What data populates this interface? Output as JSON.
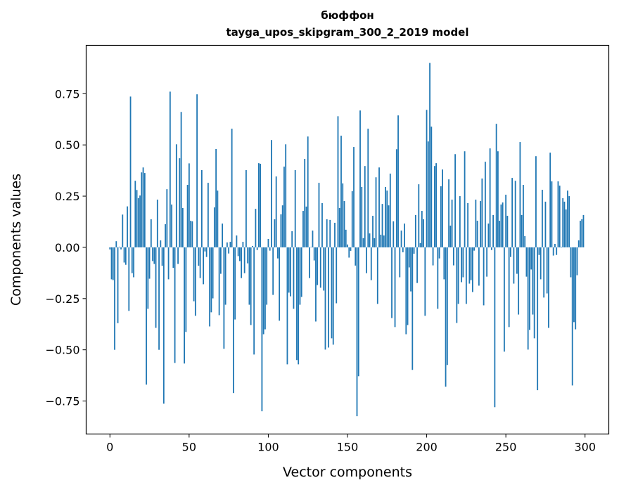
{
  "chart_data": {
    "type": "bar",
    "title": "бюффон",
    "subtitle": "tayga_upos_skipgram_300_2_2019 model",
    "xlabel": "Vector components",
    "ylabel": "Components values",
    "xlim": [
      -15,
      315
    ],
    "ylim": [
      -0.911,
      0.986
    ],
    "xticks": [
      0,
      50,
      100,
      150,
      200,
      250,
      300
    ],
    "xtick_labels": [
      "0",
      "50",
      "100",
      "150",
      "200",
      "250",
      "300"
    ],
    "yticks": [
      -0.75,
      -0.5,
      -0.25,
      0,
      0.25,
      0.5,
      0.75
    ],
    "ytick_labels": [
      "−0.75",
      "−0.50",
      "−0.25",
      "0.00",
      "0.25",
      "0.50",
      "0.75"
    ],
    "grid": false,
    "bar_color": "#1f77b4",
    "values": [
      -0.01,
      -0.156,
      -0.16,
      -0.5,
      0.03,
      -0.37,
      0.003,
      -0.01,
      0.16,
      -0.074,
      -0.085,
      0.2,
      -0.31,
      0.736,
      -0.126,
      -0.146,
      0.325,
      0.28,
      0.24,
      0.253,
      0.366,
      0.39,
      0.363,
      -0.67,
      -0.3,
      -0.153,
      0.137,
      -0.067,
      -0.081,
      -0.393,
      0.233,
      -0.5,
      0.034,
      -0.09,
      -0.763,
      0.113,
      0.284,
      -0.156,
      0.76,
      0.209,
      -0.1,
      -0.564,
      0.503,
      -0.081,
      0.435,
      0.661,
      0.192,
      -0.567,
      -0.413,
      0.305,
      0.41,
      0.13,
      0.127,
      -0.263,
      -0.334,
      0.747,
      -0.09,
      -0.15,
      0.377,
      -0.18,
      -0.02,
      -0.047,
      0.315,
      -0.386,
      -0.317,
      -0.249,
      0.195,
      0.48,
      0.277,
      -0.331,
      -0.129,
      0.116,
      -0.495,
      -0.28,
      0.024,
      -0.03,
      0.027,
      0.579,
      -0.711,
      -0.352,
      0.058,
      -0.043,
      -0.067,
      -0.15,
      0.027,
      -0.126,
      0.377,
      -0.078,
      -0.28,
      -0.379,
      0.007,
      -0.523,
      0.188,
      -0.013,
      0.411,
      0.408,
      -0.8,
      -0.424,
      -0.4,
      -0.28,
      0.041,
      -0.016,
      0.524,
      -0.232,
      0.137,
      0.346,
      -0.054,
      -0.358,
      0.161,
      0.205,
      0.394,
      0.503,
      -0.571,
      -0.221,
      -0.239,
      0.079,
      -0.3,
      0.377,
      -0.55,
      -0.571,
      -0.28,
      -0.242,
      0.178,
      0.432,
      0.199,
      0.541,
      -0.15,
      0.002,
      0.082,
      -0.064,
      -0.362,
      -0.184,
      0.315,
      -0.197,
      0.216,
      -0.211,
      -0.499,
      0.137,
      -0.489,
      0.134,
      -0.444,
      -0.475,
      0.12,
      -0.273,
      0.64,
      0.192,
      0.545,
      0.312,
      0.226,
      0.086,
      0.014,
      -0.05,
      -0.017,
      0.274,
      0.49,
      -0.089,
      -0.824,
      -0.629,
      0.668,
      0.295,
      0.045,
      0.397,
      -0.126,
      0.579,
      0.068,
      -0.16,
      0.154,
      0.045,
      0.342,
      -0.276,
      0.39,
      0.062,
      0.212,
      0.058,
      0.295,
      0.277,
      0.205,
      0.36,
      -0.345,
      0.127,
      -0.389,
      0.479,
      0.644,
      -0.146,
      0.082,
      -0.024,
      0.116,
      -0.424,
      -0.379,
      -0.098,
      -0.215,
      -0.598,
      -0.031,
      0.158,
      -0.174,
      0.308,
      0.021,
      0.178,
      0.137,
      -0.334,
      0.671,
      0.517,
      0.9,
      0.589,
      -0.088,
      0.397,
      0.411,
      -0.3,
      -0.054,
      0.298,
      0.38,
      -0.156,
      -0.68,
      -0.574,
      0.332,
      0.106,
      0.233,
      -0.088,
      0.455,
      -0.369,
      -0.276,
      0.25,
      -0.17,
      -0.146,
      0.469,
      -0.276,
      0.216,
      -0.177,
      -0.16,
      -0.218,
      -0.016,
      0.233,
      0.13,
      -0.187,
      0.226,
      0.336,
      -0.283,
      0.418,
      -0.143,
      0.116,
      0.483,
      -0.013,
      0.158,
      -0.78,
      0.603,
      0.469,
      0.13,
      0.209,
      0.219,
      -0.509,
      0.257,
      0.154,
      -0.389,
      -0.047,
      0.339,
      -0.177,
      0.325,
      -0.129,
      -0.328,
      0.514,
      0.158,
      0.305,
      0.055,
      -0.143,
      -0.499,
      -0.403,
      -0.108,
      -0.328,
      -0.444,
      0.445,
      -0.697,
      -0.037,
      -0.156,
      0.281,
      -0.245,
      0.223,
      -0.225,
      -0.393,
      0.462,
      0.322,
      -0.04,
      0.017,
      -0.037,
      0.322,
      0.301,
      0.003,
      0.24,
      0.223,
      0.185,
      0.277,
      0.25,
      -0.146,
      -0.674,
      -0.365,
      -0.4,
      -0.136,
      0.034,
      0.13,
      0.137,
      0.158
    ]
  }
}
